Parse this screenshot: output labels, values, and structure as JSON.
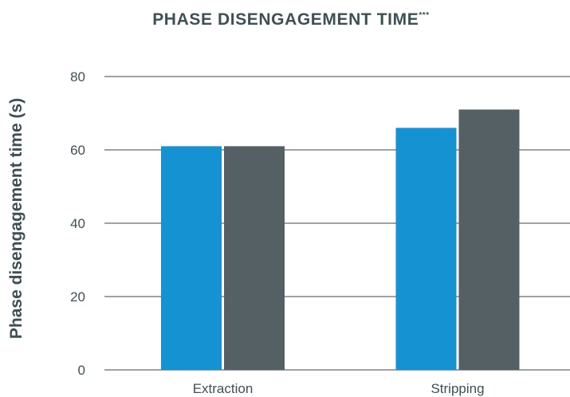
{
  "chart_data": {
    "type": "bar",
    "title": "PHASE DISENGAGEMENT TIME",
    "title_superscript": "***",
    "xlabel": "",
    "ylabel": "Phase disengagement time (s)",
    "ylim": [
      0,
      80
    ],
    "yticks": [
      0,
      20,
      40,
      60,
      80
    ],
    "categories": [
      "Extraction",
      "Stripping"
    ],
    "series": [
      {
        "values": [
          61,
          66
        ],
        "color": "#1592d1"
      },
      {
        "values": [
          61,
          71
        ],
        "color": "#546064"
      }
    ],
    "grid": true,
    "legend": "none",
    "colors": {
      "title": "#3d5056",
      "axis_text": "#3d5056",
      "gridline": "#3d4448"
    }
  }
}
